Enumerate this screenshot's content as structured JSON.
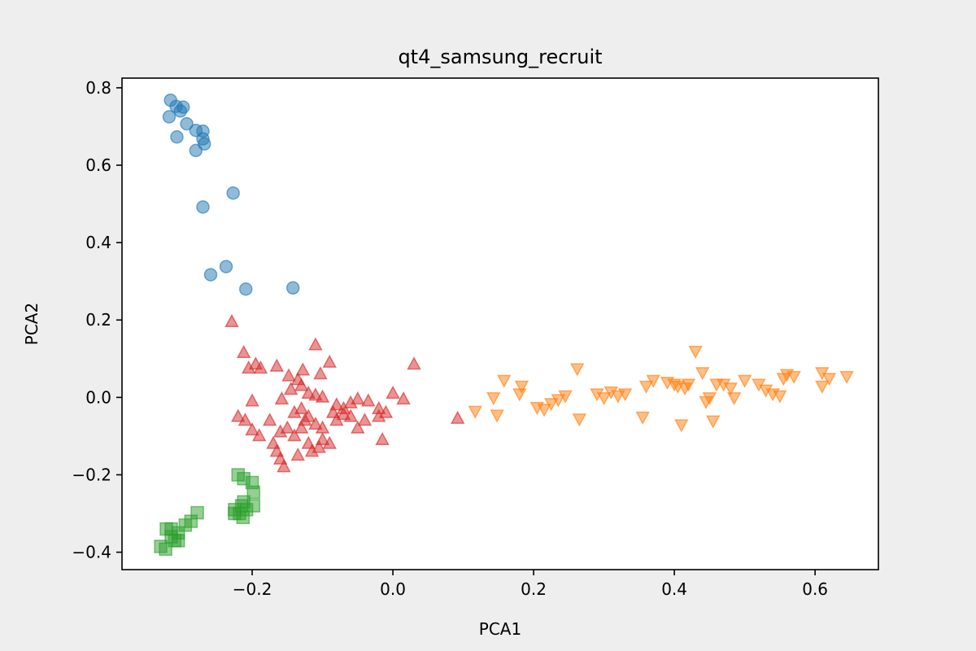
{
  "chart_data": {
    "type": "scatter",
    "title": "qt4_samsung_recruit",
    "xlabel": "PCA1",
    "ylabel": "PCA2",
    "xlim": [
      -0.385,
      0.69
    ],
    "ylim": [
      -0.445,
      0.825
    ],
    "xticks": [
      -0.2,
      0.0,
      0.2,
      0.4,
      0.6
    ],
    "xtick_labels": [
      "−0.2",
      "0.0",
      "0.2",
      "0.4",
      "0.6"
    ],
    "yticks": [
      -0.4,
      -0.2,
      0.0,
      0.2,
      0.4,
      0.6,
      0.8
    ],
    "ytick_labels": [
      "−0.4",
      "−0.2",
      "0.0",
      "0.2",
      "0.4",
      "0.6",
      "0.8"
    ],
    "grid": false,
    "series": [
      {
        "marker": "circle",
        "color": "#1f77b4",
        "points": [
          [
            -0.316,
            0.768
          ],
          [
            -0.308,
            0.752
          ],
          [
            -0.298,
            0.75
          ],
          [
            -0.302,
            0.74
          ],
          [
            -0.318,
            0.725
          ],
          [
            -0.293,
            0.707
          ],
          [
            -0.28,
            0.69
          ],
          [
            -0.27,
            0.688
          ],
          [
            -0.27,
            0.668
          ],
          [
            -0.268,
            0.655
          ],
          [
            -0.307,
            0.673
          ],
          [
            -0.28,
            0.638
          ],
          [
            -0.227,
            0.528
          ],
          [
            -0.27,
            0.492
          ],
          [
            -0.237,
            0.338
          ],
          [
            -0.259,
            0.317
          ],
          [
            -0.209,
            0.28
          ],
          [
            -0.142,
            0.283
          ]
        ]
      },
      {
        "marker": "triangle_down",
        "color": "#ff7f0e",
        "points": [
          [
            0.117,
            -0.035
          ],
          [
            0.143,
            0.0
          ],
          [
            0.148,
            -0.045
          ],
          [
            0.158,
            0.045
          ],
          [
            0.183,
            0.03
          ],
          [
            0.18,
            0.01
          ],
          [
            0.205,
            -0.025
          ],
          [
            0.215,
            -0.03
          ],
          [
            0.225,
            -0.015
          ],
          [
            0.235,
            -0.005
          ],
          [
            0.245,
            0.005
          ],
          [
            0.262,
            0.075
          ],
          [
            0.265,
            -0.055
          ],
          [
            0.29,
            0.01
          ],
          [
            0.3,
            0.0
          ],
          [
            0.31,
            0.015
          ],
          [
            0.32,
            0.005
          ],
          [
            0.33,
            0.01
          ],
          [
            0.355,
            -0.05
          ],
          [
            0.36,
            0.03
          ],
          [
            0.37,
            0.045
          ],
          [
            0.39,
            0.04
          ],
          [
            0.4,
            0.035
          ],
          [
            0.405,
            0.03
          ],
          [
            0.41,
            -0.07
          ],
          [
            0.415,
            0.025
          ],
          [
            0.42,
            0.035
          ],
          [
            0.43,
            0.12
          ],
          [
            0.44,
            0.065
          ],
          [
            0.445,
            -0.01
          ],
          [
            0.45,
            0.0
          ],
          [
            0.455,
            -0.06
          ],
          [
            0.46,
            0.035
          ],
          [
            0.47,
            0.035
          ],
          [
            0.48,
            0.025
          ],
          [
            0.485,
            0.0
          ],
          [
            0.5,
            0.045
          ],
          [
            0.52,
            0.035
          ],
          [
            0.53,
            0.02
          ],
          [
            0.54,
            0.01
          ],
          [
            0.55,
            0.005
          ],
          [
            0.555,
            0.05
          ],
          [
            0.56,
            0.06
          ],
          [
            0.57,
            0.055
          ],
          [
            0.61,
            0.065
          ],
          [
            0.61,
            0.03
          ],
          [
            0.62,
            0.05
          ],
          [
            0.645,
            0.055
          ]
        ]
      },
      {
        "marker": "square",
        "color": "#2ca02c",
        "points": [
          [
            -0.33,
            -0.385
          ],
          [
            -0.323,
            -0.392
          ],
          [
            -0.322,
            -0.34
          ],
          [
            -0.315,
            -0.34
          ],
          [
            -0.31,
            -0.37
          ],
          [
            -0.305,
            -0.35
          ],
          [
            -0.295,
            -0.33
          ],
          [
            -0.287,
            -0.32
          ],
          [
            -0.278,
            -0.298
          ],
          [
            -0.22,
            -0.2
          ],
          [
            -0.212,
            -0.21
          ],
          [
            -0.2,
            -0.22
          ],
          [
            -0.198,
            -0.245
          ],
          [
            -0.198,
            -0.28
          ],
          [
            -0.212,
            -0.27
          ],
          [
            -0.225,
            -0.29
          ],
          [
            -0.218,
            -0.3
          ],
          [
            -0.215,
            -0.28
          ],
          [
            -0.208,
            -0.29
          ],
          [
            -0.213,
            -0.31
          ],
          [
            -0.315,
            -0.36
          ],
          [
            -0.305,
            -0.37
          ],
          [
            -0.225,
            -0.3
          ]
        ]
      },
      {
        "marker": "triangle_up",
        "color": "#d62728",
        "points": [
          [
            -0.229,
            0.195
          ],
          [
            -0.212,
            0.115
          ],
          [
            -0.205,
            0.075
          ],
          [
            -0.195,
            0.085
          ],
          [
            -0.188,
            0.075
          ],
          [
            -0.165,
            0.08
          ],
          [
            -0.148,
            0.055
          ],
          [
            -0.135,
            0.045
          ],
          [
            -0.128,
            0.07
          ],
          [
            -0.11,
            0.135
          ],
          [
            -0.103,
            0.06
          ],
          [
            -0.09,
            0.09
          ],
          [
            -0.2,
            -0.01
          ],
          [
            -0.158,
            -0.005
          ],
          [
            -0.145,
            0.02
          ],
          [
            -0.13,
            0.03
          ],
          [
            -0.12,
            0.01
          ],
          [
            -0.11,
            0.005
          ],
          [
            -0.1,
            0.0
          ],
          [
            -0.08,
            -0.02
          ],
          [
            -0.06,
            -0.015
          ],
          [
            -0.05,
            -0.005
          ],
          [
            -0.035,
            -0.01
          ],
          [
            -0.02,
            -0.03
          ],
          [
            -0.01,
            -0.04
          ],
          [
            0.0,
            0.01
          ],
          [
            0.015,
            -0.005
          ],
          [
            0.03,
            0.085
          ],
          [
            -0.22,
            -0.05
          ],
          [
            -0.21,
            -0.06
          ],
          [
            -0.2,
            -0.085
          ],
          [
            -0.19,
            -0.1
          ],
          [
            -0.175,
            -0.06
          ],
          [
            -0.16,
            -0.09
          ],
          [
            -0.15,
            -0.08
          ],
          [
            -0.14,
            -0.04
          ],
          [
            -0.13,
            -0.03
          ],
          [
            -0.12,
            -0.05
          ],
          [
            -0.11,
            -0.07
          ],
          [
            -0.1,
            -0.08
          ],
          [
            -0.09,
            -0.12
          ],
          [
            -0.08,
            -0.06
          ],
          [
            -0.07,
            -0.03
          ],
          [
            -0.06,
            -0.05
          ],
          [
            -0.05,
            -0.08
          ],
          [
            -0.04,
            -0.06
          ],
          [
            -0.02,
            -0.05
          ],
          [
            -0.015,
            -0.11
          ],
          [
            -0.17,
            -0.12
          ],
          [
            -0.165,
            -0.14
          ],
          [
            -0.16,
            -0.16
          ],
          [
            -0.155,
            -0.18
          ],
          [
            -0.135,
            -0.15
          ],
          [
            -0.12,
            -0.12
          ],
          [
            -0.115,
            -0.14
          ],
          [
            -0.105,
            -0.13
          ],
          [
            -0.1,
            -0.11
          ],
          [
            -0.14,
            -0.1
          ],
          [
            -0.13,
            -0.08
          ],
          [
            -0.125,
            -0.06
          ],
          [
            -0.085,
            -0.04
          ],
          [
            -0.07,
            -0.045
          ],
          [
            0.092,
            -0.055
          ]
        ]
      }
    ]
  }
}
